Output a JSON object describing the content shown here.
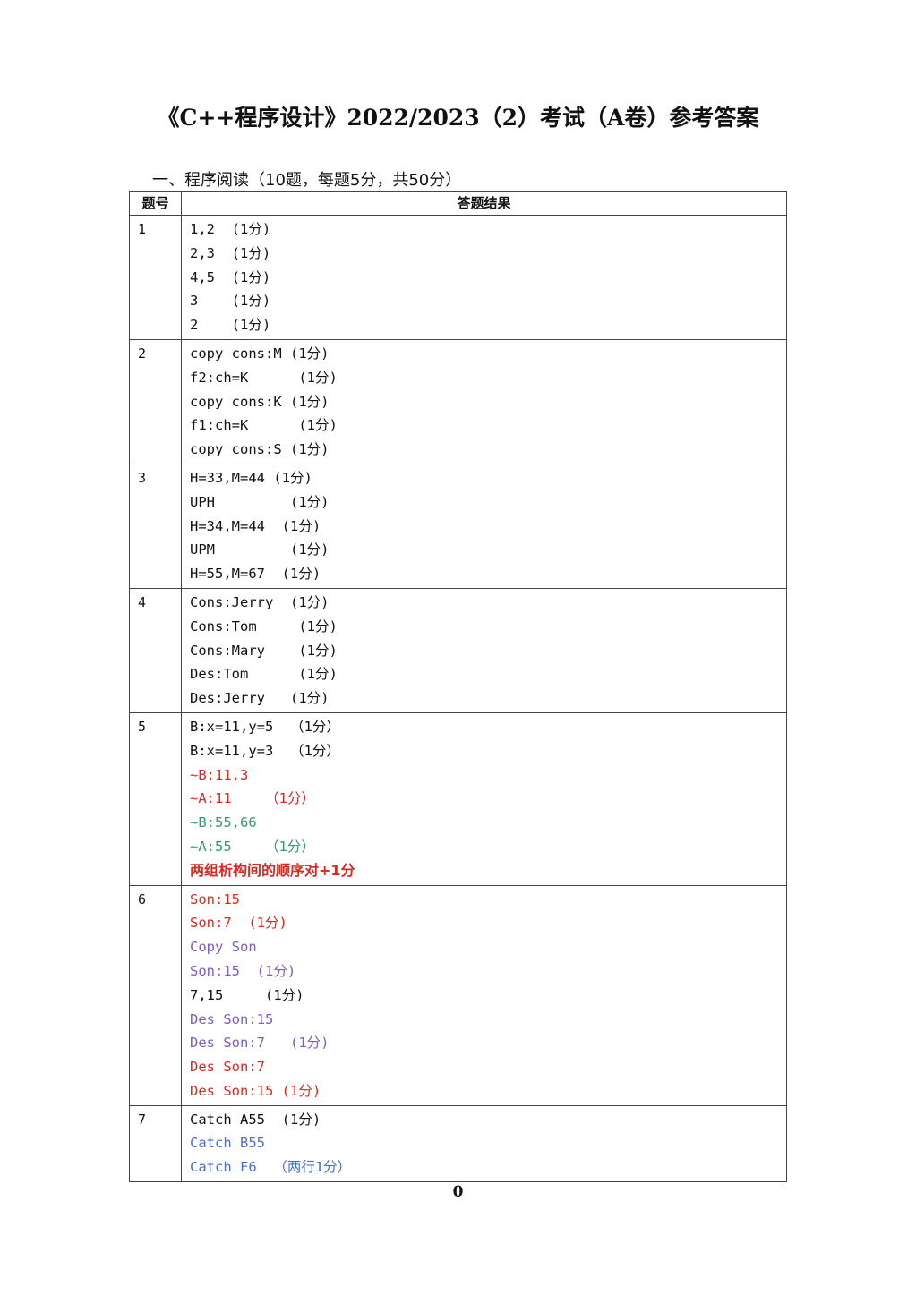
{
  "title": "《C++程序设计》2022/2023（2）考试（A卷）参考答案",
  "section": "一、程序阅读（10题，每题5分，共50分）",
  "headers": {
    "num": "题号",
    "result": "答题结果"
  },
  "colors": {
    "black": "#111111",
    "red": "#e0261f",
    "green": "#2e9e6b",
    "purple": "#7b5cc4",
    "blue": "#4a6fd0"
  },
  "rows": [
    {
      "num": "1",
      "lines": [
        {
          "text": "1,2  (1分)",
          "color": "#111111"
        },
        {
          "text": "2,3  (1分)",
          "color": "#111111"
        },
        {
          "text": "4,5  (1分)",
          "color": "#111111"
        },
        {
          "text": "3    (1分)",
          "color": "#111111"
        },
        {
          "text": "2    (1分)",
          "color": "#111111"
        }
      ]
    },
    {
      "num": "2",
      "lines": [
        {
          "text": "copy cons:M (1分)",
          "color": "#111111"
        },
        {
          "text": "f2:ch=K      (1分)",
          "color": "#111111"
        },
        {
          "text": "copy cons:K (1分)",
          "color": "#111111"
        },
        {
          "text": "f1:ch=K      (1分)",
          "color": "#111111"
        },
        {
          "text": "copy cons:S (1分)",
          "color": "#111111"
        }
      ]
    },
    {
      "num": "3",
      "lines": [
        {
          "text": "H=33,M=44 (1分)",
          "color": "#111111"
        },
        {
          "text": "UPH         (1分)",
          "color": "#111111"
        },
        {
          "text": "H=34,M=44  (1分)",
          "color": "#111111"
        },
        {
          "text": "UPM         (1分)",
          "color": "#111111"
        },
        {
          "text": "H=55,M=67  (1分)",
          "color": "#111111"
        }
      ]
    },
    {
      "num": "4",
      "lines": [
        {
          "text": "Cons:Jerry  (1分)",
          "color": "#111111"
        },
        {
          "text": "Cons:Tom     (1分)",
          "color": "#111111"
        },
        {
          "text": "Cons:Mary    (1分)",
          "color": "#111111"
        },
        {
          "text": "Des:Tom      (1分)",
          "color": "#111111"
        },
        {
          "text": "Des:Jerry   (1分)",
          "color": "#111111"
        }
      ]
    },
    {
      "num": "5",
      "lines": [
        {
          "text": "B:x=11,y=5  （1分）",
          "color": "#111111"
        },
        {
          "text": "B:x=11,y=3  （1分）",
          "color": "#111111"
        },
        {
          "text": "~B:11,3",
          "color": "#e0261f"
        },
        {
          "text": "~A:11    （1分）",
          "color": "#e0261f"
        },
        {
          "text": "~B:55,66",
          "color": "#2e9e6b"
        },
        {
          "text": "~A:55    （1分）",
          "color": "#2e9e6b"
        },
        {
          "text": "两组析构间的顺序对+1分",
          "color": "#e0261f",
          "bold": true
        }
      ]
    },
    {
      "num": "6",
      "lines": [
        {
          "text": "Son:15",
          "color": "#e0261f"
        },
        {
          "text": "Son:7  (1分)",
          "color": "#e0261f"
        },
        {
          "text": "Copy Son",
          "color": "#7b5cc4"
        },
        {
          "text": "Son:15  (1分)",
          "color": "#7b5cc4"
        },
        {
          "text": "7,15     (1分)",
          "color": "#111111"
        },
        {
          "text": "Des Son:15",
          "color": "#7b5cc4"
        },
        {
          "text": "Des Son:7   (1分)",
          "color": "#7b5cc4"
        },
        {
          "text": "Des Son:7",
          "color": "#e0261f"
        },
        {
          "text": "Des Son:15 (1分)",
          "color": "#e0261f"
        }
      ]
    },
    {
      "num": "7",
      "lines": [
        {
          "text": "Catch A55  (1分)",
          "color": "#111111"
        },
        {
          "text": "Catch B55",
          "color": "#4a6fd0"
        },
        {
          "text": "Catch F6  （两行1分）",
          "color": "#4a6fd0"
        }
      ]
    }
  ],
  "page_number": "0"
}
